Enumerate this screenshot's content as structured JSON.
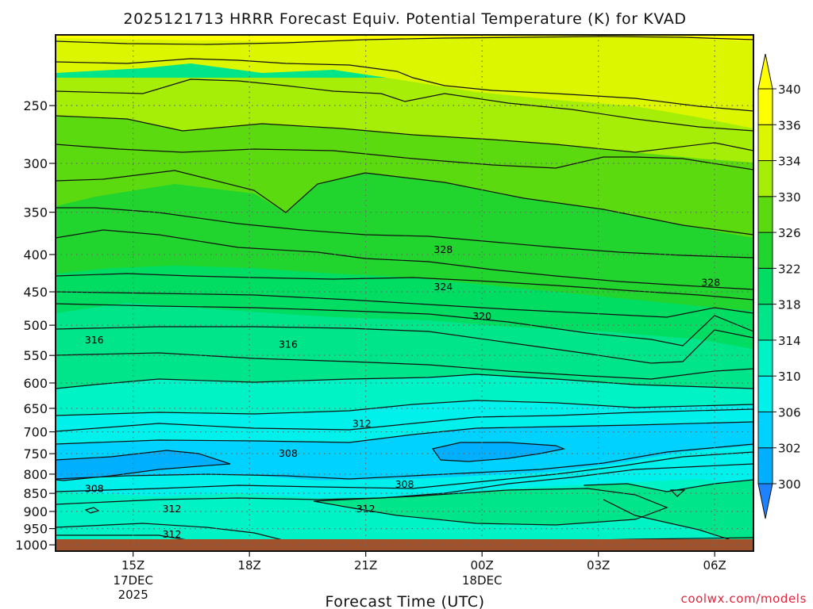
{
  "chart_data": {
    "type": "heatmap",
    "title": "2025121713 HRRR Forecast Equiv. Potential Temperature (K) for KVAD",
    "xlabel": "Forecast Time (UTC)",
    "ylabel": "",
    "x_ticks": [
      "15Z",
      "18Z",
      "21Z",
      "00Z",
      "03Z",
      "06Z"
    ],
    "x_tick_hours": [
      15,
      18,
      21,
      24,
      27,
      30
    ],
    "x_date_labels": [
      {
        "hour": 15,
        "lines": [
          "17DEC",
          "2025"
        ]
      },
      {
        "hour": 24,
        "lines": [
          "18DEC"
        ]
      }
    ],
    "xlim": [
      13,
      31
    ],
    "y_ticks": [
      250,
      300,
      350,
      400,
      450,
      500,
      550,
      600,
      650,
      700,
      750,
      800,
      850,
      900,
      950,
      1000
    ],
    "ylim": [
      1020,
      200
    ],
    "y_scale": "log",
    "colorbar": {
      "levels": [
        300,
        302,
        306,
        310,
        314,
        318,
        322,
        326,
        330,
        334,
        336,
        340
      ],
      "labels": [
        "300",
        "302",
        "306",
        "310",
        "314",
        "318",
        "322",
        "326",
        "330",
        "334",
        "336",
        "340"
      ],
      "colors": [
        "#1e82ff",
        "#00b0ff",
        "#00d2ff",
        "#00f0ec",
        "#00f3c4",
        "#00e48a",
        "#00dd62",
        "#22d52e",
        "#5cda10",
        "#a6ee08",
        "#dcf600",
        "#ffff00"
      ],
      "extend": "both"
    },
    "contour_labels": [
      {
        "text": "328",
        "hour": 23.0,
        "p": 393
      },
      {
        "text": "328",
        "hour": 29.9,
        "p": 436
      },
      {
        "text": "324",
        "hour": 23.0,
        "p": 442
      },
      {
        "text": "320",
        "hour": 24.0,
        "p": 485
      },
      {
        "text": "316",
        "hour": 14.0,
        "p": 523
      },
      {
        "text": "316",
        "hour": 19.0,
        "p": 530
      },
      {
        "text": "312",
        "hour": 20.9,
        "p": 681
      },
      {
        "text": "308",
        "hour": 19.0,
        "p": 748
      },
      {
        "text": "308",
        "hour": 22.0,
        "p": 825
      },
      {
        "text": "308",
        "hour": 14.0,
        "p": 836
      },
      {
        "text": "312",
        "hour": 16.0,
        "p": 891
      },
      {
        "text": "312",
        "hour": 21.0,
        "p": 891
      },
      {
        "text": "312",
        "hour": 16.0,
        "p": 965
      }
    ],
    "grid": true,
    "ground_color": "#a0522d"
  },
  "credit": "coolwx.com/models"
}
